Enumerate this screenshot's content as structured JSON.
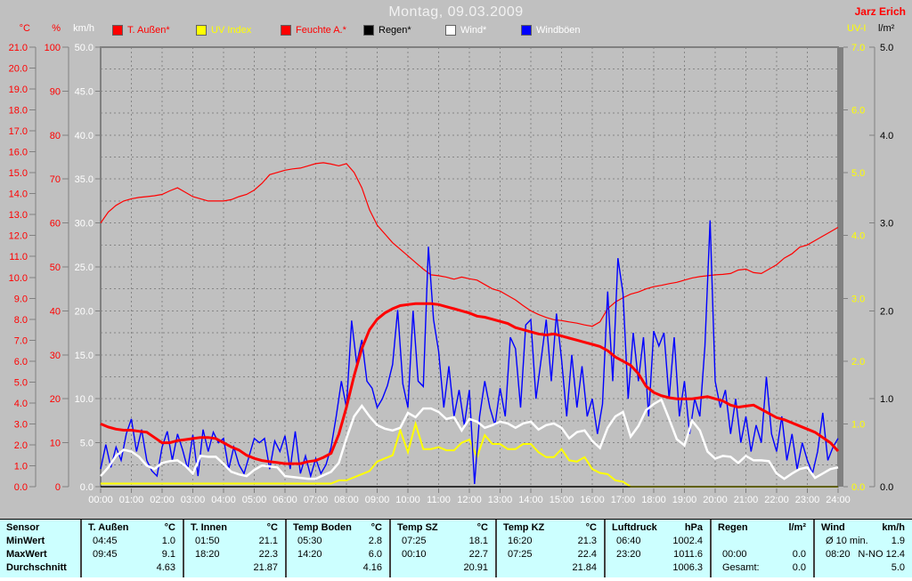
{
  "window": {
    "title": "Montag, 09.03.2009",
    "watermark": "Jarz Erich"
  },
  "colors": {
    "background": "#c0c0c0",
    "grid": "#868686",
    "frame": "#808080",
    "temp_line": "#ff0000",
    "humidity_line": "#ff0000",
    "uv_line": "#ffff00",
    "rain_line": "#000000",
    "wind_line": "#ffffff",
    "gust_line": "#0000ff",
    "table_bg": "#ccffff"
  },
  "legend": [
    {
      "label": "T. Außen*",
      "swatch": "#ff0000",
      "text_color": "#ff0000"
    },
    {
      "label": "UV Index",
      "swatch": "#ffff00",
      "text_color": "#ffff00"
    },
    {
      "label": "Feuchte A.*",
      "swatch": "#ff0000",
      "text_color": "#ff0000"
    },
    {
      "label": "Regen*",
      "swatch": "#000000",
      "text_color": "#000000"
    },
    {
      "label": "Wind*",
      "swatch": "#ffffff",
      "text_color": "#ffffff"
    },
    {
      "label": "Windböen",
      "swatch": "#0000ff",
      "text_color": "#ffffff"
    }
  ],
  "axes": {
    "left": [
      {
        "header": "°C",
        "color": "#ff0000",
        "ticks": [
          "21.0",
          "20.0",
          "19.0",
          "18.0",
          "17.0",
          "16.0",
          "15.0",
          "14.0",
          "13.0",
          "12.0",
          "11.0",
          "10.0",
          "9.0",
          "8.0",
          "7.0",
          "6.0",
          "5.0",
          "4.0",
          "3.0",
          "2.0",
          "1.0",
          "0.0"
        ]
      },
      {
        "header": "%",
        "color": "#ff0000",
        "ticks": [
          "100",
          "90",
          "80",
          "70",
          "60",
          "50",
          "40",
          "30",
          "20",
          "10",
          "0"
        ]
      },
      {
        "header": "km/h",
        "color": "#ffffff",
        "ticks": [
          "50.0",
          "45.0",
          "40.0",
          "35.0",
          "30.0",
          "25.0",
          "20.0",
          "15.0",
          "10.0",
          "5.0",
          "0.0"
        ]
      }
    ],
    "right": [
      {
        "header": "UV-I",
        "color": "#ffff00",
        "ticks": [
          "7.0",
          "6.0",
          "5.0",
          "4.0",
          "3.0",
          "2.0",
          "1.0",
          "0.0"
        ]
      },
      {
        "header": "l/m²",
        "color": "#000000",
        "ticks": [
          "5.0",
          "4.0",
          "3.0",
          "2.0",
          "1.0",
          "0.0"
        ]
      }
    ],
    "x": {
      "labels": [
        "00:00",
        "01:00",
        "02:00",
        "03:00",
        "04:00",
        "05:00",
        "06:00",
        "07:00",
        "08:00",
        "09:00",
        "10:00",
        "11:00",
        "12:00",
        "13:00",
        "14:00",
        "15:00",
        "16:00",
        "17:00",
        "18:00",
        "19:00",
        "20:00",
        "21:00",
        "22:00",
        "23:00",
        "24:00"
      ]
    }
  },
  "chart_data": {
    "type": "line",
    "title": "Montag, 09.03.2009",
    "x_unit": "hours",
    "x_range": [
      0,
      24
    ],
    "grid": true,
    "series": [
      {
        "name": "Feuchte A.",
        "unit": "%",
        "axis_range": [
          0,
          100
        ],
        "color": "#ff0000",
        "width": 1.2,
        "step_h": 0.25,
        "values": [
          60,
          62.5,
          64,
          65,
          65.5,
          65.8,
          66,
          66.2,
          66.5,
          67.3,
          68,
          67,
          66,
          65.5,
          65,
          65,
          65,
          65.3,
          66,
          66.5,
          67.5,
          69,
          71,
          71.5,
          72,
          72.3,
          72.5,
          73,
          73.5,
          73.7,
          73.4,
          73,
          73.5,
          71.5,
          68,
          63,
          59.5,
          57.5,
          55.5,
          54,
          52.5,
          51,
          49.5,
          48.2,
          48,
          47.7,
          47.2,
          47.7,
          47.3,
          47,
          46,
          45,
          44.5,
          43.5,
          42.5,
          41.2,
          40,
          39.2,
          38.5,
          38,
          37.8,
          37.5,
          37.2,
          36.8,
          36.5,
          37.5,
          40.5,
          42,
          43,
          43.8,
          44.3,
          45,
          45.5,
          45.8,
          46.2,
          46.5,
          47,
          47.5,
          47.8,
          48,
          48.2,
          48.3,
          48.5,
          49.3,
          49.5,
          48.7,
          48.5,
          49.5,
          50.5,
          52,
          53,
          54.5,
          55,
          56,
          57,
          58,
          59
        ]
      },
      {
        "name": "UV Index",
        "unit": "UV-I",
        "axis_range": [
          0,
          7
        ],
        "color": "#ffff00",
        "width": 2,
        "step_h": 0.25,
        "values": [
          0.05,
          0.05,
          0.05,
          0.05,
          0.05,
          0.05,
          0.05,
          0.05,
          0.05,
          0.05,
          0.05,
          0.05,
          0.05,
          0.05,
          0.05,
          0.05,
          0.05,
          0.05,
          0.05,
          0.05,
          0.05,
          0.05,
          0.05,
          0.05,
          0.05,
          0.05,
          0.05,
          0.05,
          0.05,
          0.05,
          0.05,
          0.1,
          0.1,
          0.15,
          0.2,
          0.25,
          0.4,
          0.45,
          0.5,
          0.9,
          0.55,
          1.0,
          0.6,
          0.6,
          0.63,
          0.58,
          0.58,
          0.7,
          0.75,
          0.47,
          0.82,
          0.68,
          0.68,
          0.6,
          0.6,
          0.68,
          0.68,
          0.55,
          0.47,
          0.47,
          0.6,
          0.42,
          0.4,
          0.47,
          0.28,
          0.22,
          0.2,
          0.1,
          0.08,
          0,
          0,
          0,
          0,
          0,
          0,
          0,
          0,
          0,
          0,
          0,
          0,
          0,
          0,
          0,
          0,
          0,
          0,
          0,
          0,
          0,
          0,
          0,
          0,
          0,
          0,
          0,
          0
        ]
      },
      {
        "name": "Regen",
        "unit": "l/m²",
        "axis_range": [
          0,
          5
        ],
        "color": "#000000",
        "width": 1.2,
        "step_h": 12,
        "values": [
          0,
          0,
          0
        ]
      },
      {
        "name": "Windböen",
        "unit": "km/h",
        "axis_range": [
          0,
          50
        ],
        "color": "#0000ff",
        "width": 1.4,
        "step_h": 0.1666667,
        "values": [
          2.0,
          4.8,
          2.2,
          4.5,
          3.0,
          6.0,
          7.7,
          4.0,
          6.5,
          3.0,
          1.8,
          1.2,
          4.5,
          6.3,
          3.0,
          6.0,
          4.2,
          2.0,
          5.9,
          1.2,
          6.5,
          4.0,
          6.2,
          5.0,
          5.5,
          2.0,
          4.5,
          2.5,
          1.5,
          3.5,
          5.5,
          5.0,
          5.5,
          2.0,
          5.2,
          4.0,
          5.8,
          2.0,
          6.3,
          1.5,
          3.5,
          1.2,
          3.2,
          1.5,
          2.5,
          4.5,
          8.0,
          12.0,
          9.0,
          18.9,
          14.0,
          16.7,
          12.0,
          11.2,
          9.0,
          10.0,
          11.5,
          13.9,
          20.1,
          11.7,
          9.0,
          20.0,
          12.0,
          11.4,
          27.3,
          19.0,
          15.4,
          9.0,
          13.7,
          8.0,
          11.0,
          7.0,
          11.0,
          0.3,
          8.0,
          12.0,
          9.0,
          7.0,
          11.2,
          8.0,
          17.0,
          15.7,
          9.0,
          18.4,
          19.0,
          10.0,
          14.4,
          19.0,
          12.0,
          19.7,
          14.5,
          8.0,
          15.0,
          9.0,
          13.7,
          8.0,
          10.0,
          6.0,
          9.4,
          22.2,
          12.0,
          26.0,
          22.0,
          10.0,
          17.5,
          12.0,
          17.0,
          8.0,
          17.7,
          16.0,
          17.5,
          10.0,
          17.0,
          8.0,
          12.0,
          6.0,
          10.0,
          8.0,
          16.0,
          30.3,
          12.0,
          9.0,
          11.0,
          6.0,
          10.0,
          5.0,
          8.0,
          4.0,
          7.0,
          5.0,
          12.5,
          6.0,
          4.0,
          8.0,
          3.0,
          6.0,
          2.0,
          5.0,
          3.0,
          1.5,
          4.0,
          8.4,
          3.0,
          4.5,
          5.5
        ]
      },
      {
        "name": "T. Außen",
        "unit": "°C",
        "axis_range": [
          0,
          21
        ],
        "color": "#ff0000",
        "width": 3,
        "step_h": 0.25,
        "values": [
          3.0,
          2.85,
          2.75,
          2.7,
          2.7,
          2.65,
          2.6,
          2.35,
          2.1,
          2.1,
          2.2,
          2.25,
          2.3,
          2.35,
          2.35,
          2.3,
          2.1,
          1.9,
          1.75,
          1.5,
          1.35,
          1.25,
          1.2,
          1.15,
          1.1,
          1.1,
          1.1,
          1.2,
          1.25,
          1.4,
          1.6,
          2.5,
          3.8,
          5.3,
          6.6,
          7.5,
          8.0,
          8.3,
          8.5,
          8.65,
          8.7,
          8.75,
          8.75,
          8.75,
          8.7,
          8.6,
          8.5,
          8.4,
          8.3,
          8.15,
          8.1,
          8.0,
          7.9,
          7.8,
          7.6,
          7.5,
          7.4,
          7.3,
          7.25,
          7.3,
          7.2,
          7.1,
          7.0,
          6.9,
          6.8,
          6.7,
          6.5,
          6.2,
          6.0,
          5.8,
          5.4,
          4.8,
          4.5,
          4.35,
          4.25,
          4.2,
          4.2,
          4.2,
          4.25,
          4.3,
          4.2,
          4.1,
          3.9,
          3.8,
          3.85,
          3.9,
          3.7,
          3.5,
          3.3,
          3.2,
          3.05,
          2.9,
          2.75,
          2.6,
          2.35,
          2.1,
          1.7
        ]
      },
      {
        "name": "Wind",
        "unit": "km/h",
        "axis_range": [
          0,
          50
        ],
        "color": "#ffffff",
        "width": 2.5,
        "step_h": 0.25,
        "values": [
          1.2,
          2.2,
          3.5,
          4.2,
          4.0,
          3.4,
          2.4,
          2.0,
          2.7,
          2.9,
          3.0,
          2.4,
          1.5,
          3.5,
          3.4,
          3.4,
          2.6,
          1.7,
          1.4,
          1.2,
          1.9,
          2.4,
          2.3,
          2.2,
          1.2,
          1.1,
          1.0,
          0.9,
          0.9,
          1.3,
          1.7,
          2.7,
          5.5,
          8.0,
          9.2,
          8.0,
          7.0,
          6.6,
          6.4,
          6.7,
          8.4,
          7.9,
          8.9,
          8.9,
          8.5,
          7.7,
          7.9,
          6.4,
          7.7,
          7.4,
          6.7,
          7.0,
          7.4,
          7.2,
          6.7,
          7.2,
          7.4,
          6.5,
          7.0,
          7.2,
          6.7,
          5.5,
          6.2,
          6.4,
          5.2,
          4.4,
          6.7,
          8.0,
          8.5,
          5.7,
          6.9,
          8.7,
          9.4,
          9.9,
          7.7,
          5.4,
          4.7,
          7.5,
          6.4,
          4.0,
          3.2,
          3.5,
          3.4,
          2.7,
          3.5,
          3.0,
          3.0,
          2.9,
          1.5,
          0.9,
          1.5,
          2.0,
          2.2,
          1.0,
          1.5,
          2.0,
          2.2
        ]
      }
    ]
  },
  "table": {
    "corner": "Sensor",
    "row_labels": [
      "MinWert",
      "MaxWert",
      "Durchschnitt"
    ],
    "columns": [
      {
        "name": "T. Außen",
        "unit": "°C",
        "min_time": "04:45",
        "min_value": "1.0",
        "max_time": "09:45",
        "max_value": "9.1",
        "avg_label": "",
        "avg_value": "4.63"
      },
      {
        "name": "T. Innen",
        "unit": "°C",
        "min_time": "01:50",
        "min_value": "21.1",
        "max_time": "18:20",
        "max_value": "22.3",
        "avg_label": "",
        "avg_value": "21.87"
      },
      {
        "name": "Temp Boden",
        "unit": "°C",
        "min_time": "05:30",
        "min_value": "2.8",
        "max_time": "14:20",
        "max_value": "6.0",
        "avg_label": "",
        "avg_value": "4.16"
      },
      {
        "name": "Temp SZ",
        "unit": "°C",
        "min_time": "07:25",
        "min_value": "18.1",
        "max_time": "00:10",
        "max_value": "22.7",
        "avg_label": "",
        "avg_value": "20.91"
      },
      {
        "name": "Temp KZ",
        "unit": "°C",
        "min_time": "16:20",
        "min_value": "21.3",
        "max_time": "07:25",
        "max_value": "22.4",
        "avg_label": "",
        "avg_value": "21.84"
      },
      {
        "name": "Luftdruck",
        "unit": "hPa",
        "min_time": "06:40",
        "min_value": "1002.4",
        "max_time": "23:20",
        "max_value": "1011.6",
        "avg_label": "",
        "avg_value": "1006.3"
      },
      {
        "name": "Regen",
        "unit": "l/m²",
        "min_time": "",
        "min_value": "",
        "max_time": "00:00",
        "max_value": "0.0",
        "avg_label": "Gesamt:",
        "avg_value": "0.0"
      },
      {
        "name": "Wind",
        "unit": "km/h",
        "min_time": "Ø 10 min.",
        "min_value": "1.9",
        "max_time": "08:20",
        "max_value": "N-NO 12.4",
        "avg_label": "",
        "avg_value": "5.0"
      }
    ]
  }
}
